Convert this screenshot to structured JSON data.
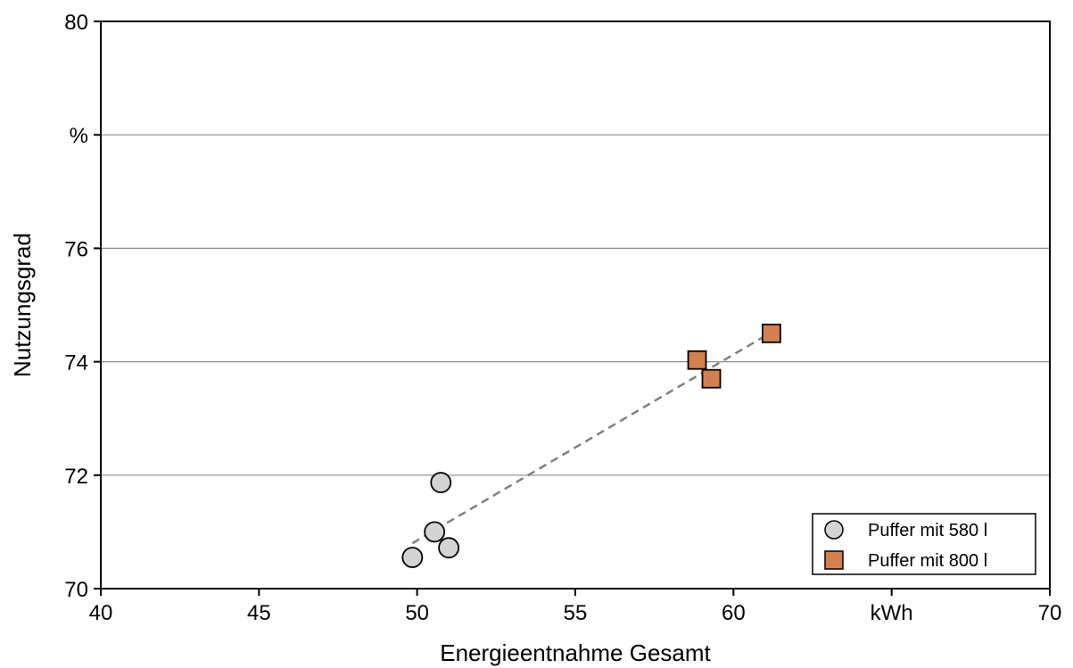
{
  "chart_data": {
    "type": "scatter",
    "title": "",
    "xlabel": "Energieentnahme Gesamt",
    "ylabel": "Nutzungsgrad",
    "xlim": [
      40,
      70
    ],
    "ylim": [
      70,
      80
    ],
    "x_ticks": [
      40,
      45,
      50,
      55,
      60,
      65,
      70
    ],
    "x_tick_labels": [
      "40",
      "45",
      "50",
      "55",
      "60",
      "kWh",
      "70"
    ],
    "y_ticks": [
      70,
      72,
      74,
      76,
      78,
      80
    ],
    "y_tick_labels": [
      "70",
      "72",
      "74",
      "76",
      "%",
      "80"
    ],
    "grid": "horizontal",
    "legend_position": "bottom-right",
    "series": [
      {
        "name": "Puffer mit 580 l",
        "marker": "circle",
        "color": "#d3d3d3",
        "x": [
          49.85,
          50.55,
          50.75,
          51.0
        ],
        "y": [
          70.55,
          71.0,
          71.87,
          70.72
        ]
      },
      {
        "name": "Puffer mit 800 l",
        "marker": "square",
        "color": "#d2804f",
        "x": [
          58.85,
          59.3,
          61.2
        ],
        "y": [
          74.03,
          73.7,
          74.5
        ]
      }
    ],
    "trendline": {
      "style": "dashed",
      "color": "#808080",
      "x": [
        49.85,
        61.2
      ],
      "y": [
        70.8,
        74.52
      ]
    }
  }
}
